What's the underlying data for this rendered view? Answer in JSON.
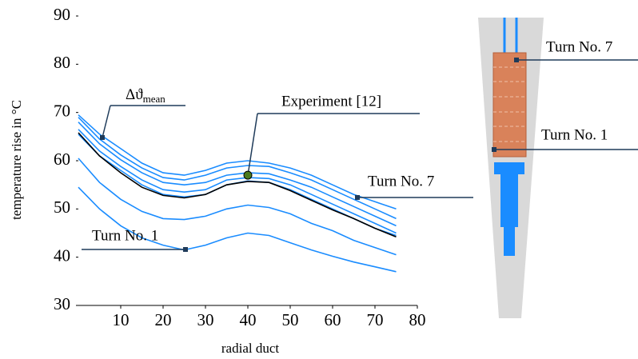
{
  "chart_data": {
    "type": "line",
    "y_label": "temperature rise in °C",
    "x_label": "radial duct",
    "x": [
      0,
      5,
      10,
      15,
      20,
      25,
      30,
      35,
      40,
      45,
      50,
      55,
      60,
      65,
      70,
      75
    ],
    "series": [
      {
        "color": "#1a8cff",
        "values": [
          54.5,
          50,
          46.5,
          44,
          42.5,
          41.5,
          42.5,
          44,
          45,
          44.5,
          43,
          41.5,
          40.2,
          39,
          38,
          37
        ]
      },
      {
        "color": "#1a8cff",
        "values": [
          60.5,
          55.5,
          52,
          49.5,
          48,
          47.8,
          48.5,
          50,
          50.8,
          50.3,
          49,
          47,
          45.5,
          43.5,
          42,
          40.5
        ]
      },
      {
        "color": "#1a8cff",
        "values": [
          65.5,
          61,
          58,
          55,
          53,
          52.5,
          53,
          55,
          55.8,
          55.5,
          54,
          52,
          50,
          48,
          46,
          44.5
        ]
      },
      {
        "color": "#1a8cff",
        "values": [
          66.5,
          62,
          58.8,
          56,
          54,
          53.5,
          54,
          56,
          56.5,
          56.3,
          55,
          53,
          51,
          49,
          47,
          45
        ]
      },
      {
        "color": "#1a8cff",
        "values": [
          68,
          63.5,
          60.2,
          57.5,
          55.5,
          55,
          55.5,
          57,
          57.5,
          57.3,
          56,
          54.5,
          52.5,
          50.5,
          48.5,
          46.5
        ]
      },
      {
        "color": "#1a8cff",
        "values": [
          69,
          64.5,
          61.2,
          58.5,
          56.5,
          56,
          57,
          58.5,
          59,
          58.8,
          57.5,
          56,
          54,
          52,
          50,
          48
        ]
      },
      {
        "color": "#1a8cff",
        "values": [
          69.5,
          65.5,
          62.5,
          59.5,
          57.5,
          57,
          58,
          59.5,
          60,
          59.5,
          58.5,
          57,
          55,
          53,
          51.5,
          50
        ]
      },
      {
        "color": "#000000",
        "values": [
          65.8,
          61,
          57.5,
          54.5,
          52.8,
          52.3,
          53,
          55,
          55.7,
          55.5,
          53.8,
          51.8,
          49.8,
          48,
          46,
          44.2
        ]
      }
    ],
    "experiment": {
      "label": "Experiment [12]",
      "x": 40,
      "y": 57,
      "color": "#4a7a1e"
    },
    "annotations": {
      "mean_symbol": "Δϑ",
      "mean_sub": "mean",
      "turn_low": "Turn No. 1",
      "turn_high": "Turn No. 7"
    },
    "xlim": [
      0,
      80
    ],
    "xticks": [
      10,
      20,
      30,
      40,
      50,
      60,
      70,
      80
    ],
    "ylim": [
      30,
      90
    ],
    "yticks": [
      30,
      40,
      50,
      60,
      70,
      80,
      90
    ]
  },
  "diagram": {
    "top_label": "Turn No. 7",
    "bottom_label": "Turn No. 1"
  }
}
